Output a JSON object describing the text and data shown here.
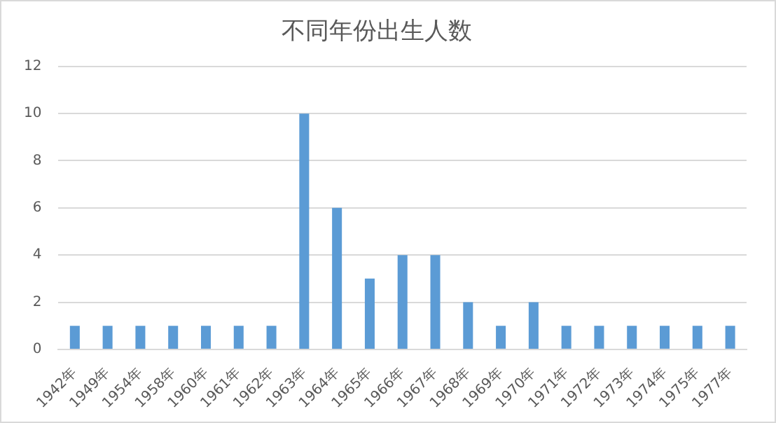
{
  "chart_data": {
    "type": "bar",
    "title": "不同年份出生人数",
    "categories": [
      "1942年",
      "1949年",
      "1954年",
      "1958年",
      "1960年",
      "1961年",
      "1962年",
      "1963年",
      "1964年",
      "1965年",
      "1966年",
      "1967年",
      "1968年",
      "1969年",
      "1970年",
      "1971年",
      "1972年",
      "1973年",
      "1974年",
      "1975年",
      "1977年"
    ],
    "values": [
      1,
      1,
      1,
      1,
      1,
      1,
      1,
      10,
      6,
      3,
      4,
      4,
      2,
      1,
      2,
      1,
      1,
      1,
      1,
      1,
      1
    ],
    "color": "#5b9bd5",
    "ylim": [
      0,
      12
    ],
    "yticks": [
      0,
      2,
      4,
      6,
      8,
      10,
      12
    ],
    "grid": "y",
    "legend": false
  }
}
